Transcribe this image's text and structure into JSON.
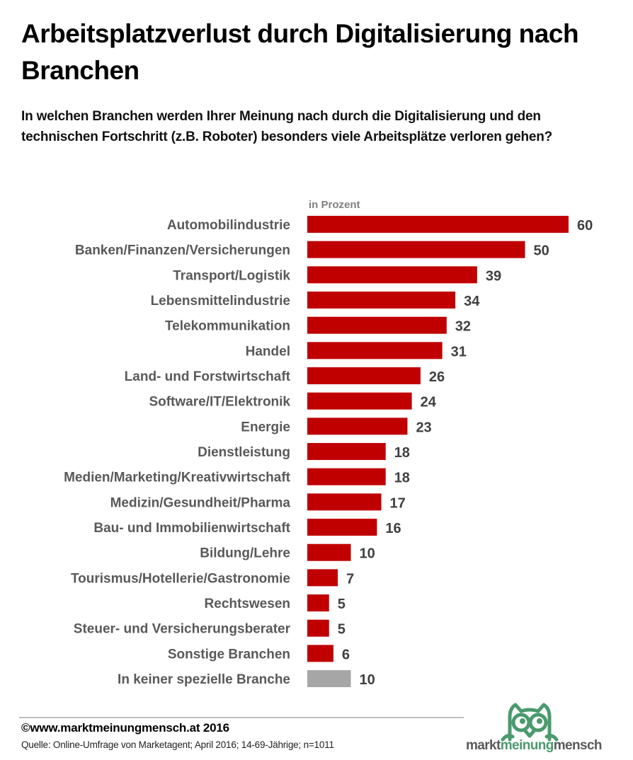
{
  "header": {
    "title": "Arbeitsplatzverlust durch Digitalisierung nach Branchen",
    "subtitle": "In welchen Branchen werden Ihrer Meinung nach durch die Digitalisierung und den technischen Fortschritt (z.B. Roboter) besonders viele Arbeitsplätze verloren gehen?"
  },
  "chart_data": {
    "type": "bar",
    "orientation": "horizontal",
    "title": "Arbeitsplatzverlust durch Digitalisierung nach Branchen",
    "subtitle": "In welchen Branchen werden Ihrer Meinung nach durch die Digitalisierung und den technischen Fortschritt (z.B. Roboter) besonders viele Arbeitsplätze verloren gehen?",
    "unit_label": "in Prozent",
    "xlabel": "",
    "ylabel": "",
    "xlim": [
      0,
      60
    ],
    "grid": false,
    "legend": "none",
    "categories": [
      "Automobilindustrie",
      "Banken/Finanzen/Versicherungen",
      "Transport/Logistik",
      "Lebensmittelindustrie",
      "Telekommunikation",
      "Handel",
      "Land- und Forstwirtschaft",
      "Software/IT/Elektronik",
      "Energie",
      "Dienstleistung",
      "Medien/Marketing/Kreativwirtschaft",
      "Medizin/Gesundheit/Pharma",
      "Bau- und Immobilienwirtschaft",
      "Bildung/Lehre",
      "Tourismus/Hotellerie/Gastronomie",
      "Rechtswesen",
      "Steuer- und Versicherungsberater",
      "Sonstige Branchen",
      "In keiner spezielle Branche"
    ],
    "values": [
      60,
      50,
      39,
      34,
      32,
      31,
      26,
      24,
      23,
      18,
      18,
      17,
      16,
      10,
      7,
      5,
      5,
      6,
      10
    ],
    "bar_colors": [
      "#c00000",
      "#c00000",
      "#c00000",
      "#c00000",
      "#c00000",
      "#c00000",
      "#c00000",
      "#c00000",
      "#c00000",
      "#c00000",
      "#c00000",
      "#c00000",
      "#c00000",
      "#c00000",
      "#c00000",
      "#c00000",
      "#c00000",
      "#c00000",
      "#a6a6a6"
    ]
  },
  "footer": {
    "copyright": "©www.marktmeinungmensch.at 2016",
    "source": "Quelle: Online-Umfrage von Marketagent; April 2016; 14-69-Jährige; n=1011"
  },
  "logo": {
    "part1": "markt",
    "part2": "meinung",
    "part3": "mensch",
    "owl_color": "#4a9a6e",
    "text_color": "#595959"
  }
}
